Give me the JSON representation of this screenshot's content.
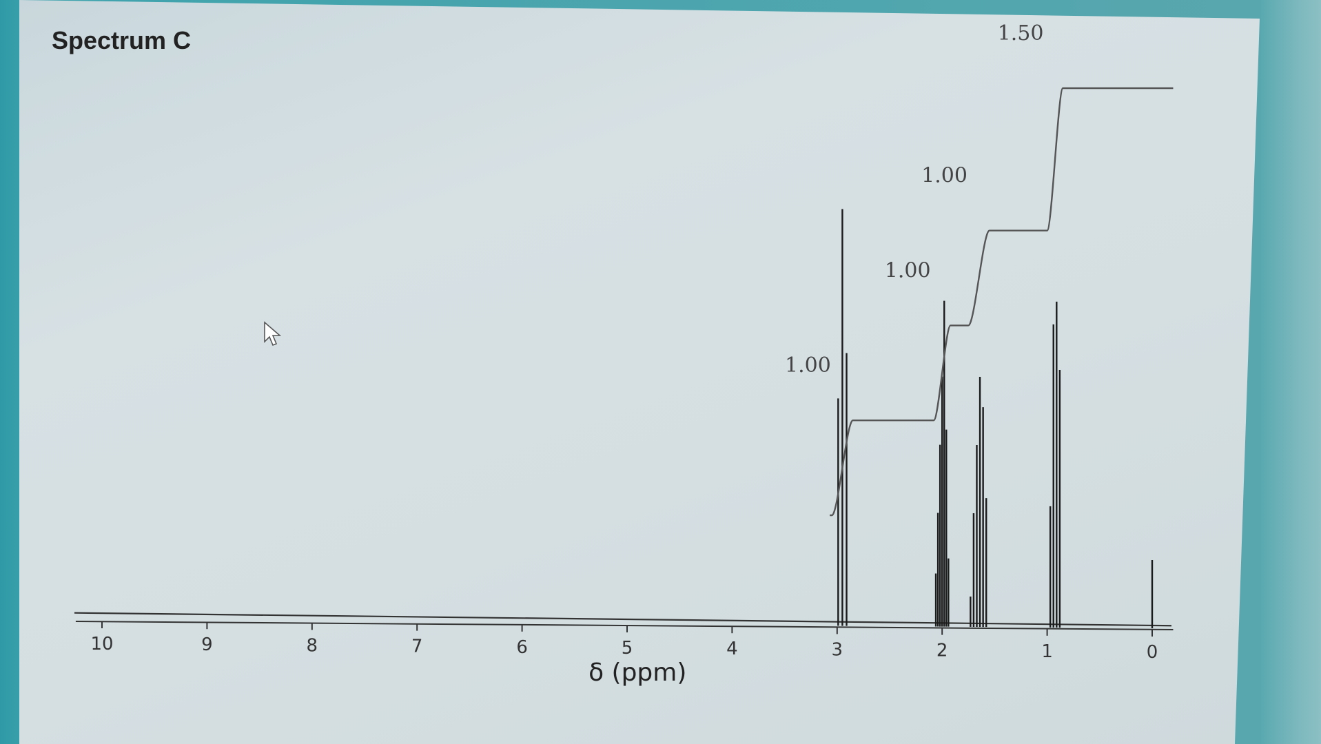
{
  "page": {
    "title": "Spectrum C"
  },
  "chart_data": {
    "type": "line",
    "title": "Spectrum C",
    "xlabel": "δ (ppm)",
    "ylabel": "",
    "xlim": [
      10,
      0
    ],
    "x_ticks": [
      10,
      9,
      8,
      7,
      6,
      5,
      4,
      3,
      2,
      1,
      0
    ],
    "tick_labels": [
      "10",
      "9",
      "8",
      "7",
      "6",
      "5",
      "4",
      "3",
      "2",
      "1",
      "0"
    ],
    "peaks": [
      {
        "shift": 2.95,
        "multiplicity": "triplet",
        "lines": [
          {
            "x": 2.99,
            "h": 0.3
          },
          {
            "x": 2.95,
            "h": 0.55
          },
          {
            "x": 2.91,
            "h": 0.36
          }
        ]
      },
      {
        "shift": 2.0,
        "multiplicity": "multiplet",
        "lines": [
          {
            "x": 2.06,
            "h": 0.07
          },
          {
            "x": 2.04,
            "h": 0.15
          },
          {
            "x": 2.02,
            "h": 0.24
          },
          {
            "x": 2.0,
            "h": 0.33
          },
          {
            "x": 1.98,
            "h": 0.43
          },
          {
            "x": 1.96,
            "h": 0.26
          },
          {
            "x": 1.94,
            "h": 0.09
          }
        ]
      },
      {
        "shift": 1.65,
        "multiplicity": "multiplet",
        "lines": [
          {
            "x": 1.73,
            "h": 0.04
          },
          {
            "x": 1.7,
            "h": 0.15
          },
          {
            "x": 1.67,
            "h": 0.24
          },
          {
            "x": 1.64,
            "h": 0.33
          },
          {
            "x": 1.61,
            "h": 0.29
          },
          {
            "x": 1.58,
            "h": 0.17
          }
        ]
      },
      {
        "shift": 0.92,
        "multiplicity": "multiplet",
        "lines": [
          {
            "x": 0.97,
            "h": 0.16
          },
          {
            "x": 0.94,
            "h": 0.4
          },
          {
            "x": 0.91,
            "h": 0.43
          },
          {
            "x": 0.88,
            "h": 0.34
          }
        ]
      },
      {
        "shift": 0.0,
        "multiplicity": "singlet",
        "lines": [
          {
            "x": 0.0,
            "h": 0.09
          }
        ]
      }
    ],
    "integrals": [
      {
        "region": [
          3.05,
          2.85
        ],
        "value": "1.00"
      },
      {
        "region": [
          2.08,
          1.92
        ],
        "value": "1.00"
      },
      {
        "region": [
          1.75,
          1.55
        ],
        "value": "1.00"
      },
      {
        "region": [
          1.0,
          0.85
        ],
        "value": "1.50"
      }
    ]
  }
}
